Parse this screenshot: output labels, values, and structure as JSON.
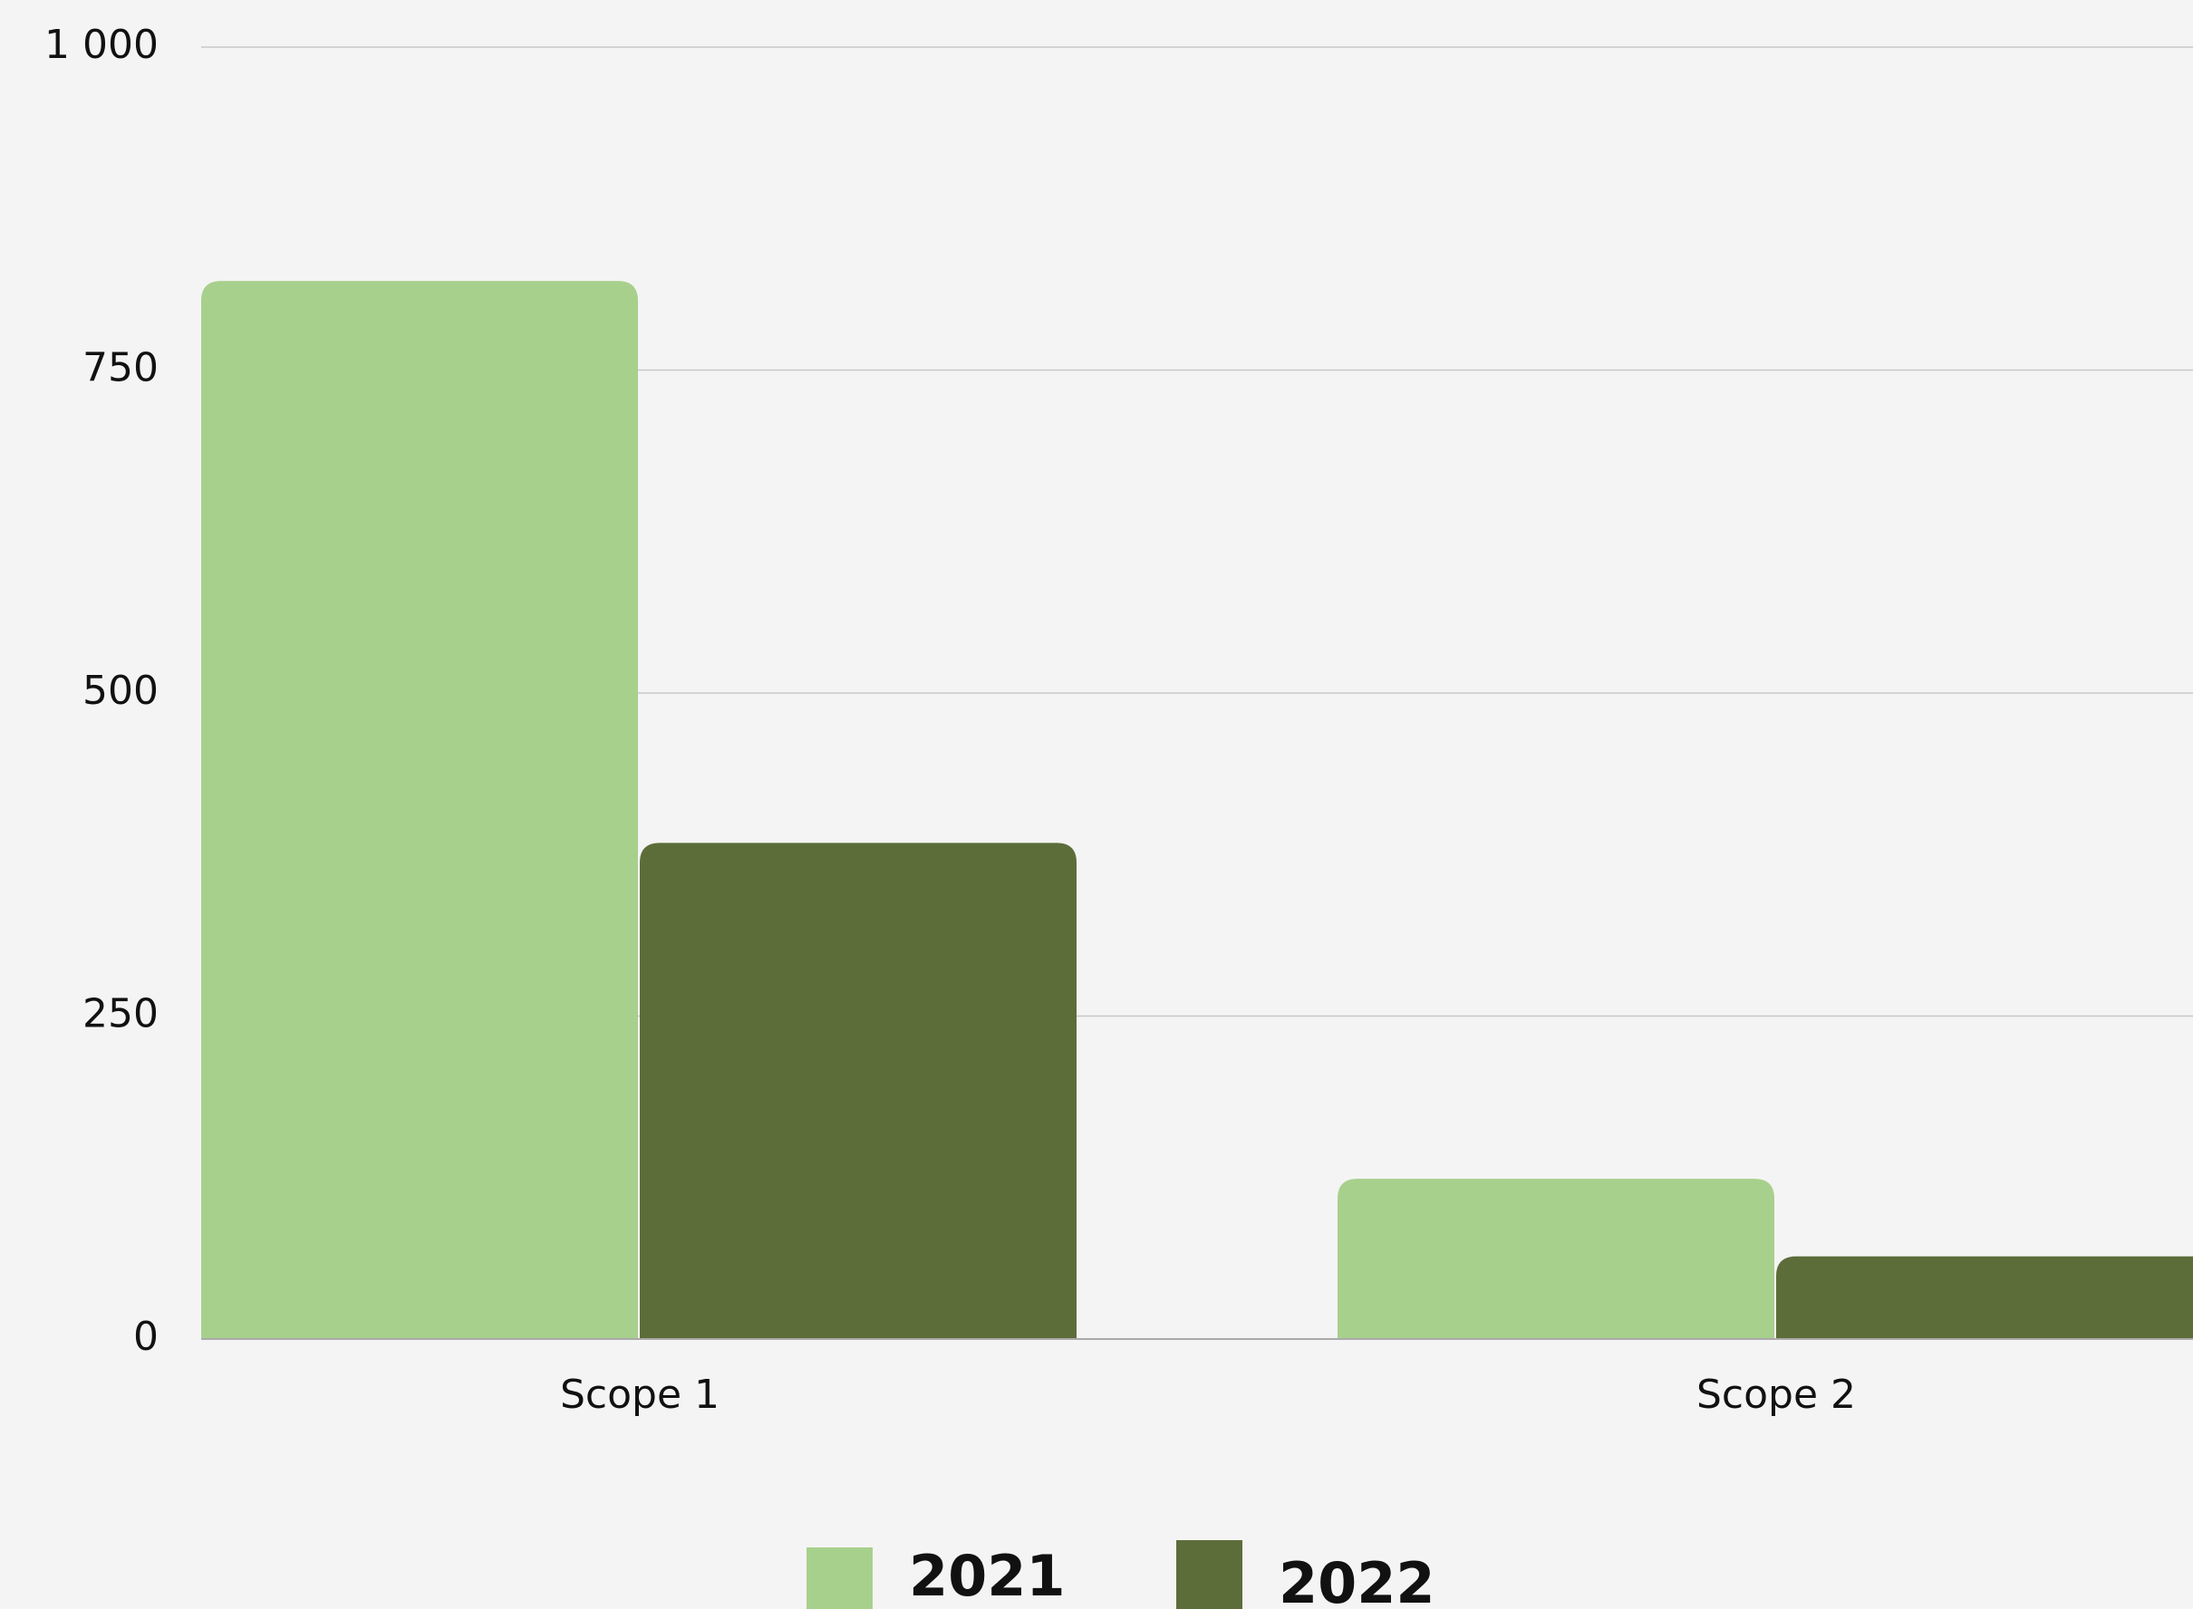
{
  "chart_data": {
    "type": "bar",
    "categories": [
      "Scope 1",
      "Scope 2"
    ],
    "series": [
      {
        "name": "2021",
        "color": "#a8d08d",
        "values": [
          819,
          124
        ]
      },
      {
        "name": "2022",
        "color": "#5c6d3a",
        "values": [
          384,
          64
        ]
      }
    ],
    "ylim": [
      0,
      1000
    ],
    "yticks": [
      0,
      250,
      500,
      750,
      {
        "value": 1000,
        "label": "1 000"
      }
    ],
    "grid": true,
    "legend": "bottom"
  }
}
